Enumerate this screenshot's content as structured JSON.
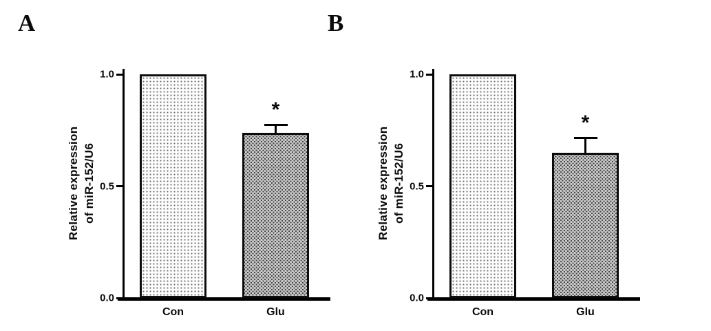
{
  "styles": {
    "background": "#ffffff",
    "axis_color": "#000000",
    "bar_border": "#0d0d0d",
    "con_fill": "#fdfdfd",
    "glu_fill": "#c9c9c9",
    "dot_color": "#6e6e6e"
  },
  "chart_data": [
    {
      "type": "bar",
      "panel_label": "A",
      "title": "",
      "xlabel": "",
      "ylabel": "Relative expression\nof miR-152/U6",
      "categories": [
        "Con",
        "Glu"
      ],
      "values": [
        1.0,
        0.74
      ],
      "errors": [
        0,
        0.04
      ],
      "significance": [
        "",
        "*"
      ],
      "ylim": [
        0,
        1.0
      ],
      "yticks": [
        0.0,
        0.5,
        1.0
      ],
      "ytick_labels": [
        "0.0",
        "0.5",
        "1.0"
      ],
      "grid": false,
      "legend": false
    },
    {
      "type": "bar",
      "panel_label": "B",
      "title": "",
      "xlabel": "",
      "ylabel": "Relative expression\nof miR-152/U6",
      "categories": [
        "Con",
        "Glu"
      ],
      "values": [
        1.0,
        0.65
      ],
      "errors": [
        0,
        0.07
      ],
      "significance": [
        "",
        "*"
      ],
      "ylim": [
        0,
        1.0
      ],
      "yticks": [
        0.0,
        0.5,
        1.0
      ],
      "ytick_labels": [
        "0.0",
        "0.5",
        "1.0"
      ],
      "grid": false,
      "legend": false
    }
  ]
}
